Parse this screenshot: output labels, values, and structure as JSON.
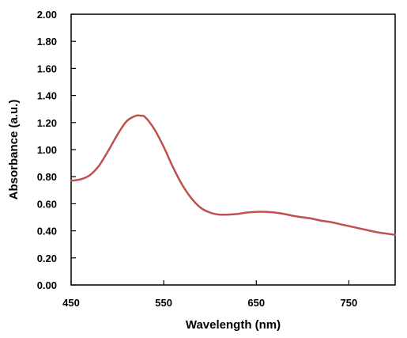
{
  "chart_data": {
    "type": "line",
    "title": "",
    "xlabel": "Wavelength (nm)",
    "ylabel": "Absorbance (a.u.)",
    "xlim": [
      450,
      800
    ],
    "ylim": [
      0,
      2
    ],
    "x_ticks": [
      450,
      550,
      650,
      750
    ],
    "x_tick_labels": [
      "450",
      "550",
      "650",
      "750"
    ],
    "y_ticks": [
      0,
      0.2,
      0.4,
      0.6,
      0.8,
      1.0,
      1.2,
      1.4,
      1.6,
      1.8,
      2.0
    ],
    "y_tick_labels": [
      "0.00",
      "0.20",
      "0.40",
      "0.60",
      "0.80",
      "1.00",
      "1.20",
      "1.40",
      "1.60",
      "1.80",
      "2.00"
    ],
    "grid": false,
    "legend": "none",
    "series": [
      {
        "color": "#c0504d",
        "x": [
          450,
          460,
          470,
          480,
          490,
          500,
          510,
          520,
          525,
          530,
          540,
          550,
          560,
          570,
          580,
          590,
          600,
          610,
          620,
          630,
          640,
          650,
          660,
          670,
          680,
          690,
          700,
          710,
          720,
          730,
          740,
          750,
          760,
          770,
          780,
          790,
          800
        ],
        "y": [
          0.77,
          0.78,
          0.81,
          0.88,
          0.99,
          1.11,
          1.21,
          1.25,
          1.25,
          1.24,
          1.15,
          1.02,
          0.87,
          0.74,
          0.64,
          0.57,
          0.535,
          0.52,
          0.52,
          0.525,
          0.535,
          0.54,
          0.54,
          0.535,
          0.525,
          0.51,
          0.5,
          0.49,
          0.475,
          0.465,
          0.45,
          0.435,
          0.42,
          0.405,
          0.39,
          0.38,
          0.37
        ]
      }
    ]
  }
}
